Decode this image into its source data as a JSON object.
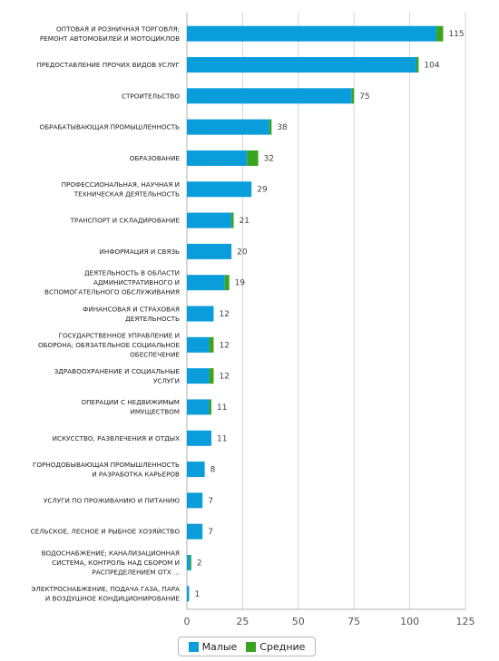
{
  "chart_data": {
    "type": "bar",
    "orientation": "horizontal",
    "stacked": true,
    "categories": [
      [
        "Оптовая и розничная торговля;",
        "ремонт автомобилей и мотоциклов"
      ],
      [
        "Предоставление прочих видов услуг"
      ],
      [
        "Строительство"
      ],
      [
        "Обрабатывающая промышленность"
      ],
      [
        "Образование"
      ],
      [
        "Профессиональная, научная и",
        "техническая деятельность"
      ],
      [
        "Транспорт и складирование"
      ],
      [
        "Информация и связь"
      ],
      [
        "Деятельность в области",
        "административного и",
        "вспомогательного обслуживания"
      ],
      [
        "Финансовая и страховая",
        "деятельность"
      ],
      [
        "Государственное управление и",
        "оборона; обязательное социальное",
        "обеспечение"
      ],
      [
        "Здравоохранение и социальные",
        "услуги"
      ],
      [
        "Операции с недвижимым",
        "имуществом"
      ],
      [
        "Искусство, развлечения и отдых"
      ],
      [
        "Горнодобывающая промышленность",
        "и разработка карьеров"
      ],
      [
        "Услуги по проживанию и питанию"
      ],
      [
        "Сельское, лесное и рыбное хозяйство"
      ],
      [
        "Водоснабжение; канализационная",
        "система, контроль над сбором и",
        "распределением отх ..."
      ],
      [
        "Электроснабжение, подача газа, пара",
        "и воздушное кондиционирование"
      ]
    ],
    "series": [
      {
        "name": "Малые",
        "color": "#0a9ddb",
        "values": [
          112,
          103,
          74,
          37,
          27,
          29,
          20,
          20,
          17,
          12,
          10,
          10,
          10,
          11,
          8,
          7,
          7,
          1.5,
          1
        ]
      },
      {
        "name": "Средние",
        "color": "#3aa41e",
        "values": [
          3,
          1,
          1,
          1,
          5,
          0,
          1,
          0,
          2,
          0,
          2,
          2,
          1,
          0,
          0,
          0,
          0,
          0.5,
          0
        ]
      }
    ],
    "totals": [
      "115",
      "104",
      "75",
      "38",
      "32",
      "29",
      "21",
      "20",
      "19",
      "12",
      "12",
      "12",
      "11",
      "11",
      "8",
      "7",
      "7",
      "2",
      "1"
    ],
    "x_ticks": [
      "0",
      "25",
      "50",
      "75",
      "100",
      "125"
    ],
    "xlim": [
      0,
      125
    ],
    "grid": true,
    "legend_position": "bottom-center",
    "title": "",
    "xlabel": "",
    "ylabel": ""
  },
  "legend": {
    "small_label": "Малые",
    "medium_label": "Средние"
  }
}
